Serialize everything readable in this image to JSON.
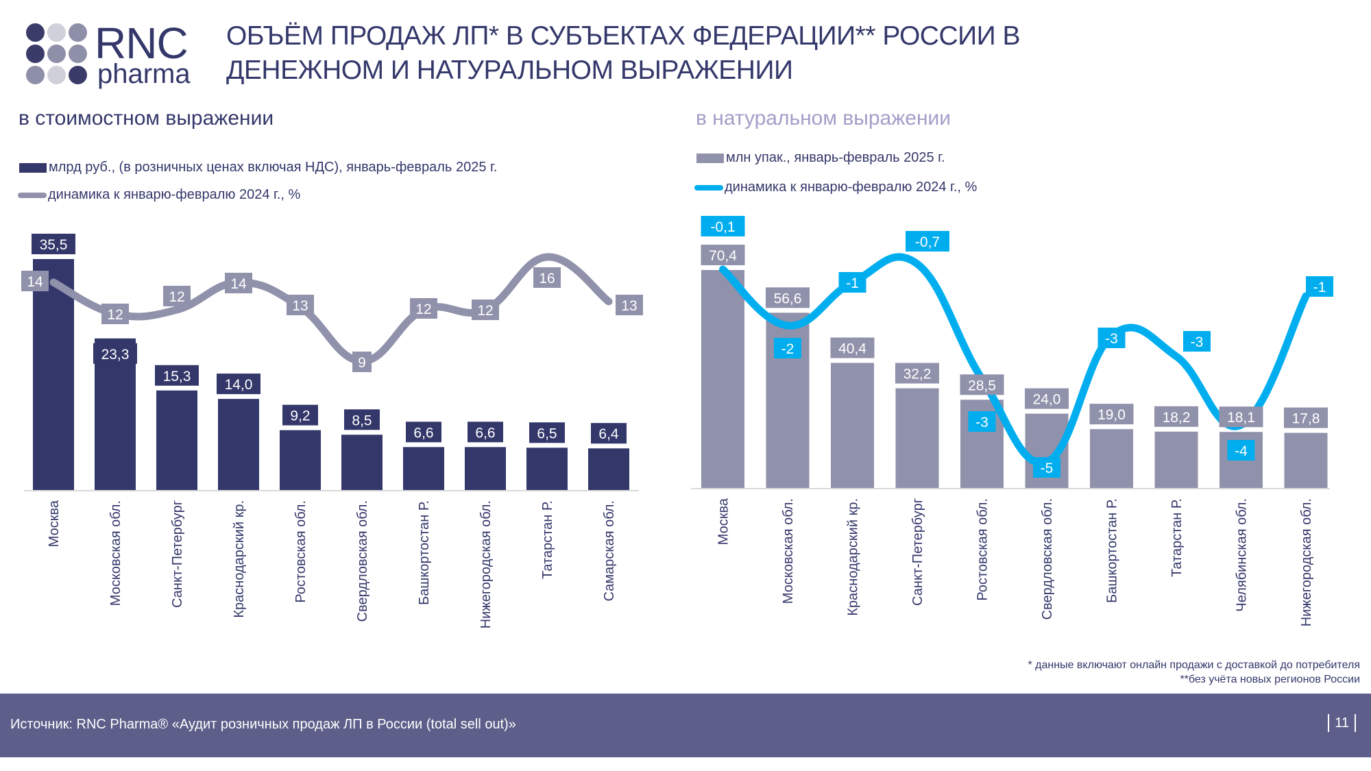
{
  "logo": {
    "brand": "RNC",
    "sub": "pharma",
    "dot_colors": [
      "#3a3b68",
      "#d0d0da",
      "#8e8fa8",
      "#3a3b68",
      "#8e8fa8",
      "#8e8fa8",
      "#8e8fa8",
      "#d0d0da",
      "#3a3b68"
    ]
  },
  "title": {
    "line1": "ОБЪЁМ ПРОДАЖ ЛП* В СУБЪЕКТАХ ФЕДЕРАЦИИ** РОССИИ В",
    "line2": "ДЕНЕЖНОМ И НАТУРАЛЬНОМ ВЫРАЖЕНИИ"
  },
  "panels": {
    "left": {
      "subtitle": "в стоимостном выражении",
      "legend_bar": "млрд руб., (в розничных ценах включая НДС), январь-февраль 2025 г.",
      "legend_line": "динамика к январю-февралю 2024 г., %"
    },
    "right": {
      "subtitle": "в натуральном выражении",
      "legend_bar": "млн упак., январь-февраль 2025 г.",
      "legend_line": "динамика к январю-февралю 2024 г., %"
    }
  },
  "colors": {
    "left_bar": "#33376a",
    "left_line": "#9091ab",
    "right_bar": "#9091ab",
    "right_line": "#00aeef",
    "axis": "#d9d9d9",
    "label_text": "#ffffff"
  },
  "chart_data": [
    {
      "type": "bar",
      "title": "в стоимостном выражении",
      "categories": [
        "Москва",
        "Московская обл.",
        "Санкт-Петербург",
        "Краснодарский кр.",
        "Ростовская обл.",
        "Свердловская обл.",
        "Башкортостан Р.",
        "Нижегородская обл.",
        "Татарстан Р.",
        "Самарская обл."
      ],
      "series": [
        {
          "name": "млрд руб., (в розничных ценах включая НДС), январь-февраль 2025 г.",
          "kind": "bar",
          "values": [
            35.5,
            23.3,
            15.3,
            14.0,
            9.2,
            8.5,
            6.6,
            6.6,
            6.5,
            6.4
          ],
          "labels": [
            "35,5",
            "23,3",
            "15,3",
            "14,0",
            "9,2",
            "8,5",
            "6,6",
            "6,6",
            "6,5",
            "6,4"
          ]
        },
        {
          "name": "динамика к январю-февралю 2024 г., %",
          "kind": "line",
          "values": [
            14,
            12,
            12,
            14,
            13,
            9,
            12,
            12,
            16,
            13
          ],
          "labels": [
            "14",
            "12",
            "12",
            "14",
            "13",
            "9",
            "12",
            "12",
            "16",
            "13"
          ]
        }
      ],
      "legend": "top-left",
      "grid": false
    },
    {
      "type": "bar",
      "title": "в натуральном выражении",
      "categories": [
        "Москва",
        "Московская обл.",
        "Краснодарский кр.",
        "Санкт-Петербург",
        "Ростовская обл.",
        "Свердловская обл.",
        "Башкортостан Р.",
        "Татарстан Р.",
        "Челябинская обл.",
        "Нижегородская обл."
      ],
      "series": [
        {
          "name": "млн упак., январь-февраль 2025 г.",
          "kind": "bar",
          "values": [
            70.4,
            56.6,
            40.4,
            32.2,
            28.5,
            24.0,
            19.0,
            18.2,
            18.1,
            17.8
          ],
          "labels": [
            "70,4",
            "56,6",
            "40,4",
            "32,2",
            "28,5",
            "24,0",
            "19,0",
            "18,2",
            "18,1",
            "17,8"
          ]
        },
        {
          "name": "динамика к январю-февралю 2024 г., %",
          "kind": "line",
          "values": [
            -0.1,
            -2,
            -1,
            -0.7,
            -3,
            -5,
            -3,
            -3,
            -4,
            -1
          ],
          "labels": [
            "-0,1",
            "-2",
            "-1",
            "-0,7",
            "-3",
            "-5",
            "-3",
            "-3",
            "-4",
            "-1"
          ]
        }
      ],
      "legend": "top-left",
      "grid": false
    }
  ],
  "notes": {
    "note1": "* данные включают онлайн продажи с доставкой до потребителя",
    "note2": "**без учёта новых регионов России"
  },
  "footer": {
    "source": "Источник: RNC Pharma® «Аудит розничных продаж ЛП в России (total sell out)»",
    "page": "11"
  }
}
